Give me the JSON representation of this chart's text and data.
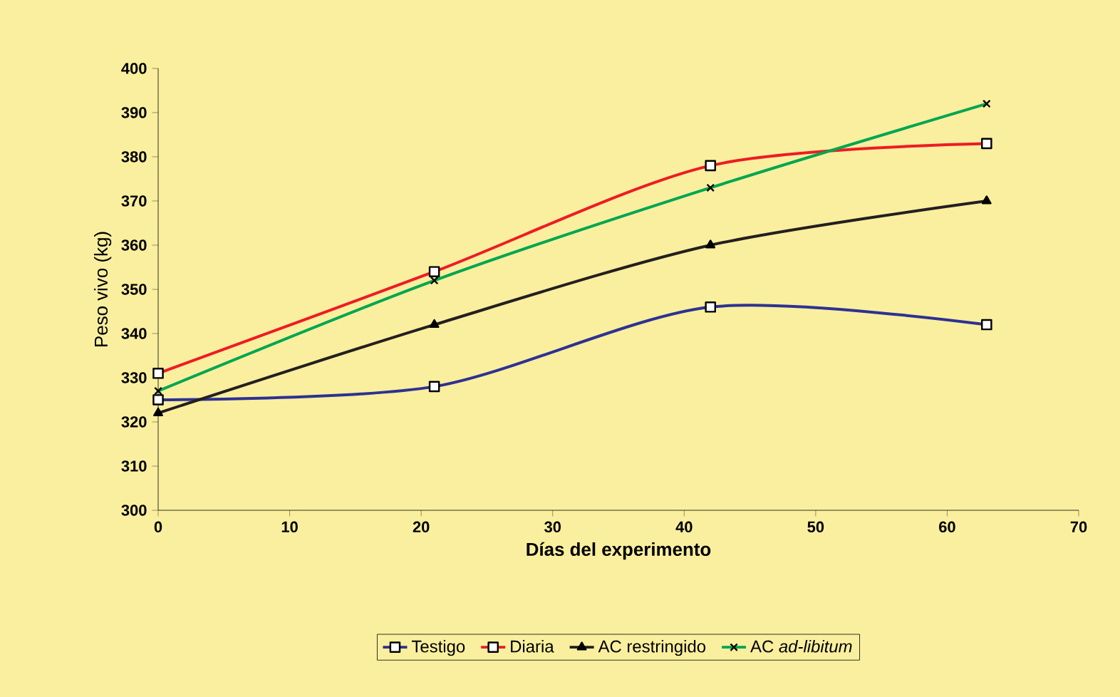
{
  "chart_data": {
    "type": "line",
    "xlabel": "Días del experimento",
    "ylabel": "Peso vivo (kg)",
    "x": [
      0,
      21,
      42,
      63
    ],
    "series": [
      {
        "name": "Testigo",
        "color": "#2e3192",
        "values": [
          325,
          328,
          346,
          342
        ],
        "marker": "square"
      },
      {
        "name": "Diaria",
        "color": "#ed1c24",
        "values": [
          331,
          354,
          378,
          383
        ],
        "marker": "square"
      },
      {
        "name": "AC restringido",
        "color": "#231f20",
        "values": [
          322,
          342,
          360,
          370
        ],
        "marker": "triangle"
      },
      {
        "name": "AC *ad-libitum*",
        "color": "#00a651",
        "values": [
          327,
          352,
          373,
          392
        ],
        "marker": "cross"
      }
    ],
    "xlim": [
      0,
      70
    ],
    "xticks": [
      0,
      10,
      20,
      30,
      40,
      50,
      60,
      70
    ],
    "ylim": [
      300,
      400
    ],
    "yticks": [
      300,
      310,
      320,
      330,
      340,
      350,
      360,
      370,
      380,
      390,
      400
    ],
    "grid": false,
    "legend": "bottom"
  }
}
